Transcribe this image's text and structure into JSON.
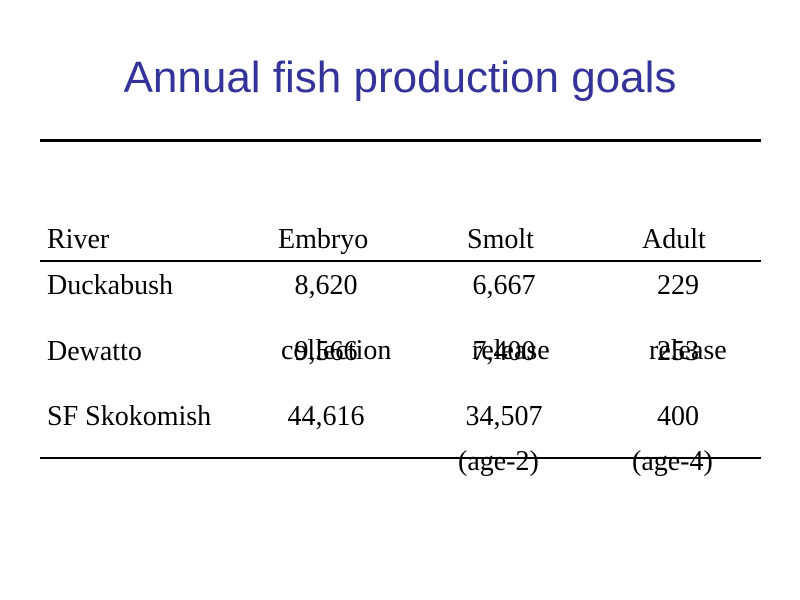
{
  "slide": {
    "title": "Annual fish production goals"
  },
  "table": {
    "headers": [
      {
        "lines": [
          "River"
        ]
      },
      {
        "lines": [
          "Embryo",
          "collection"
        ]
      },
      {
        "lines": [
          "Smolt",
          "release",
          "(age-2)"
        ]
      },
      {
        "lines": [
          "Adult",
          "release",
          "(age-4)"
        ]
      }
    ],
    "rows": [
      {
        "river": "Duckabush",
        "embryo": "8,620",
        "smolt": "6,667",
        "adult": "229"
      },
      {
        "river": "Dewatto",
        "embryo": "9,566",
        "smolt": "7,400",
        "adult": "253"
      },
      {
        "river": "SF Skokomish",
        "embryo": "44,616",
        "smolt": "34,507",
        "adult": "400"
      }
    ]
  }
}
